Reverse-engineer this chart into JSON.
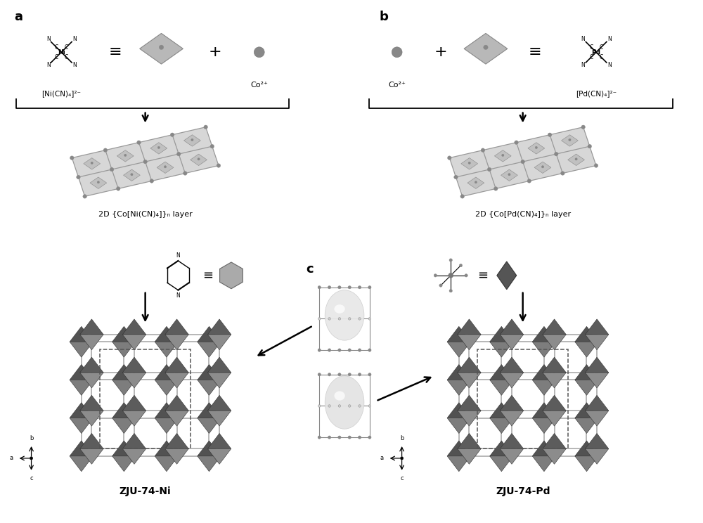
{
  "panel_a_label": "a",
  "panel_b_label": "b",
  "panel_c_label": "c",
  "formula_ni": "[Ni(CN)₄]²⁻",
  "formula_pd": "[Pd(CN)₄]²⁻",
  "co_label": "Co²⁺",
  "layer_ni": "2D {Co[Ni(CN)₄]}ₙ layer",
  "layer_pd": "2D {Co[Pd(CN)₄]}ₙ layer",
  "zju_ni": "ZJU-74-Ni",
  "zju_pd": "ZJU-74-Pd",
  "bg_color": "#ffffff"
}
